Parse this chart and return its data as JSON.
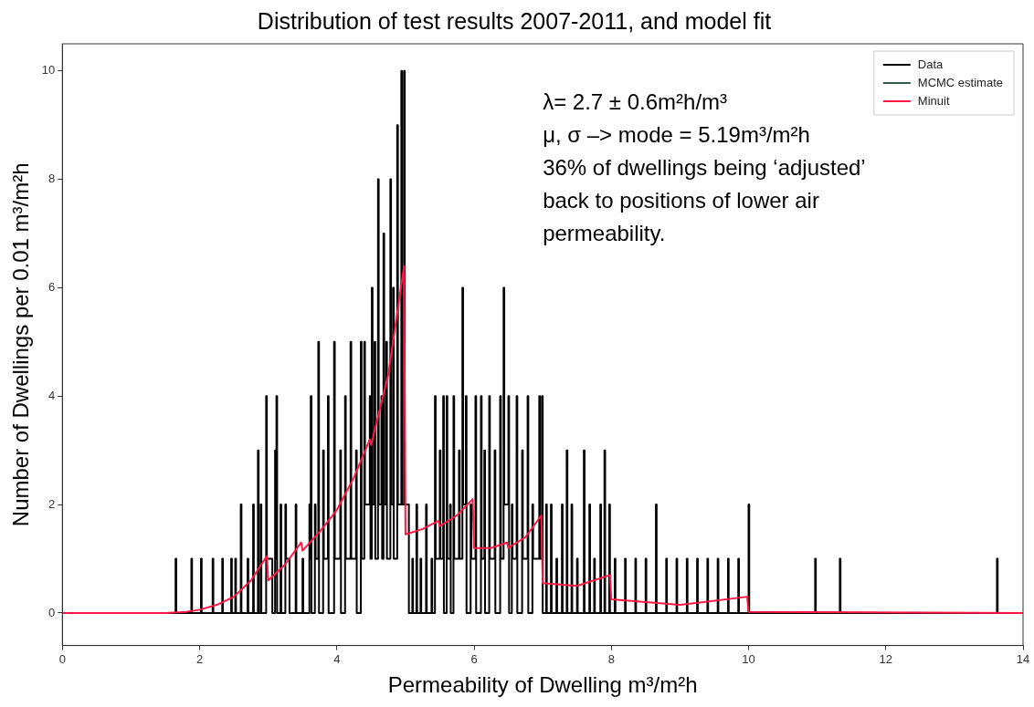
{
  "chart_data": {
    "type": "step",
    "title": "Distribution of test results 2007-2011, and model fit",
    "xlabel": "Permeability of Dwelling m³/m²h",
    "ylabel": "Number of Dwellings per 0.01 m³/m²h",
    "xlim": [
      0,
      14
    ],
    "xticks": [
      0,
      2,
      4,
      6,
      8,
      10,
      12,
      14
    ],
    "ylim": [
      -0.6,
      10.5
    ],
    "yticks": [
      0,
      2,
      4,
      6,
      8,
      10
    ],
    "grid": false,
    "legend": "top right",
    "marker": "none",
    "line_style": "solid",
    "annotations": [
      "λ= 2.7 ± 0.6m²h/m³",
      "μ, σ –> mode = 5.19m³/m²h",
      "36% of dwellings being ‘adjusted’",
      "back to positions of lower air",
      "permeability."
    ],
    "series": [
      {
        "name": "Data",
        "color": "#000000",
        "x": [
          0,
          1.65,
          1.66,
          1.88,
          1.89,
          2.02,
          2.03,
          2.19,
          2.2,
          2.33,
          2.34,
          2.46,
          2.47,
          2.52,
          2.53,
          2.6,
          2.61,
          2.7,
          2.71,
          2.78,
          2.79,
          2.85,
          2.86,
          2.89,
          2.9,
          2.97,
          2.98,
          3.05,
          3.06,
          3.1,
          3.11,
          3.12,
          3.13,
          3.18,
          3.19,
          3.25,
          3.26,
          3.3,
          3.31,
          3.4,
          3.41,
          3.5,
          3.51,
          3.6,
          3.61,
          3.62,
          3.63,
          3.68,
          3.69,
          3.73,
          3.74,
          3.8,
          3.81,
          3.87,
          3.88,
          3.96,
          3.97,
          4.05,
          4.06,
          4.12,
          4.13,
          4.2,
          4.21,
          4.28,
          4.29,
          4.35,
          4.36,
          4.4,
          4.41,
          4.48,
          4.49,
          4.51,
          4.52,
          4.55,
          4.56,
          4.6,
          4.61,
          4.65,
          4.66,
          4.68,
          4.69,
          4.72,
          4.73,
          4.78,
          4.79,
          4.82,
          4.83,
          4.88,
          4.89,
          4.94,
          4.95,
          4.98,
          4.99,
          5.04,
          5.05,
          5.1,
          5.11,
          5.16,
          5.17,
          5.22,
          5.23,
          5.3,
          5.31,
          5.38,
          5.39,
          5.43,
          5.44,
          5.5,
          5.51,
          5.55,
          5.56,
          5.6,
          5.61,
          5.65,
          5.66,
          5.7,
          5.71,
          5.78,
          5.79,
          5.83,
          5.84,
          5.88,
          5.89,
          5.95,
          5.96,
          6.02,
          6.03,
          6.1,
          6.11,
          6.15,
          6.16,
          6.22,
          6.23,
          6.3,
          6.31,
          6.38,
          6.39,
          6.43,
          6.44,
          6.5,
          6.51,
          6.55,
          6.56,
          6.62,
          6.63,
          6.7,
          6.71,
          6.78,
          6.79,
          6.85,
          6.86,
          6.95,
          6.96,
          6.99,
          7.0,
          7.05,
          7.06,
          7.12,
          7.13,
          7.2,
          7.21,
          7.28,
          7.29,
          7.35,
          7.36,
          7.42,
          7.43,
          7.5,
          7.51,
          7.6,
          7.61,
          7.68,
          7.69,
          7.75,
          7.76,
          7.84,
          7.85,
          7.9,
          7.91,
          7.97,
          7.98,
          8.05,
          8.06,
          8.2,
          8.21,
          8.35,
          8.36,
          8.5,
          8.51,
          8.65,
          8.66,
          8.8,
          8.81,
          8.95,
          8.96,
          9.1,
          9.11,
          9.25,
          9.26,
          9.4,
          9.41,
          9.55,
          9.56,
          9.7,
          9.71,
          9.85,
          9.86,
          10.0,
          10.01,
          10.97,
          10.98,
          11.33,
          11.34,
          13.62,
          13.63,
          14
        ],
        "values": [
          0,
          1,
          0,
          1,
          0,
          1,
          0,
          1,
          0,
          1,
          0,
          1,
          0,
          1,
          0,
          2,
          0,
          1,
          0,
          2,
          0,
          3,
          0,
          2,
          0,
          4,
          1,
          1,
          0,
          3,
          1,
          4,
          0,
          2,
          0,
          2,
          1,
          1,
          0,
          2,
          0,
          1,
          0,
          2,
          1,
          4,
          0,
          2,
          1,
          5,
          0,
          3,
          1,
          4,
          0,
          5,
          1,
          3,
          0,
          4,
          1,
          5,
          1,
          3,
          0,
          5,
          1,
          5,
          2,
          4,
          1,
          6,
          2,
          5,
          1,
          8,
          2,
          4,
          1,
          7,
          2,
          5,
          1,
          8,
          2,
          6,
          1,
          9,
          2,
          10,
          2,
          10,
          2,
          2,
          0,
          1,
          0,
          2,
          0,
          1,
          0,
          2,
          0,
          1,
          0,
          4,
          1,
          3,
          1,
          4,
          0,
          4,
          1,
          2,
          0,
          4,
          1,
          3,
          1,
          6,
          2,
          4,
          0,
          2,
          1,
          4,
          0,
          4,
          1,
          3,
          0,
          4,
          1,
          3,
          0,
          4,
          1,
          6,
          2,
          4,
          0,
          2,
          1,
          4,
          0,
          3,
          1,
          4,
          0,
          2,
          1,
          4,
          1,
          4,
          0,
          2,
          0,
          2,
          0,
          1,
          0,
          2,
          0,
          3,
          0,
          2,
          0,
          1,
          0,
          3,
          0,
          2,
          0,
          1,
          0,
          2,
          0,
          3,
          0,
          2,
          0,
          1,
          0,
          1,
          0,
          1,
          0,
          1,
          0,
          2,
          0,
          1,
          0,
          1,
          0,
          1,
          0,
          1,
          0,
          1,
          0,
          1,
          0,
          1,
          0,
          1,
          0,
          2,
          0,
          1,
          0,
          1,
          0,
          1,
          0,
          0
        ]
      },
      {
        "name": "MCMC estimate",
        "color": "#2f5a46",
        "type": "line",
        "values": [
          null
        ]
      },
      {
        "name": "Minuit",
        "color": "#ff1744",
        "type": "line",
        "x": [
          0,
          1.5,
          1.8,
          2.0,
          2.25,
          2.5,
          2.75,
          2.98,
          3.0,
          3.25,
          3.48,
          3.5,
          3.75,
          4.0,
          4.25,
          4.48,
          4.5,
          4.75,
          4.98,
          5.0,
          5.25,
          5.48,
          5.5,
          5.75,
          5.98,
          6.0,
          6.25,
          6.48,
          6.5,
          6.75,
          6.98,
          7.0,
          7.5,
          7.98,
          8.0,
          9.0,
          9.98,
          10.0,
          14
        ],
        "values": [
          0,
          0,
          0.02,
          0.06,
          0.15,
          0.3,
          0.6,
          1.05,
          0.6,
          0.9,
          1.3,
          1.15,
          1.5,
          1.9,
          2.5,
          3.2,
          3.1,
          4.4,
          6.4,
          1.45,
          1.55,
          1.7,
          1.6,
          1.8,
          2.1,
          1.2,
          1.2,
          1.3,
          1.2,
          1.4,
          1.8,
          0.55,
          0.5,
          0.7,
          0.25,
          0.15,
          0.3,
          0.02,
          0
        ]
      }
    ]
  }
}
